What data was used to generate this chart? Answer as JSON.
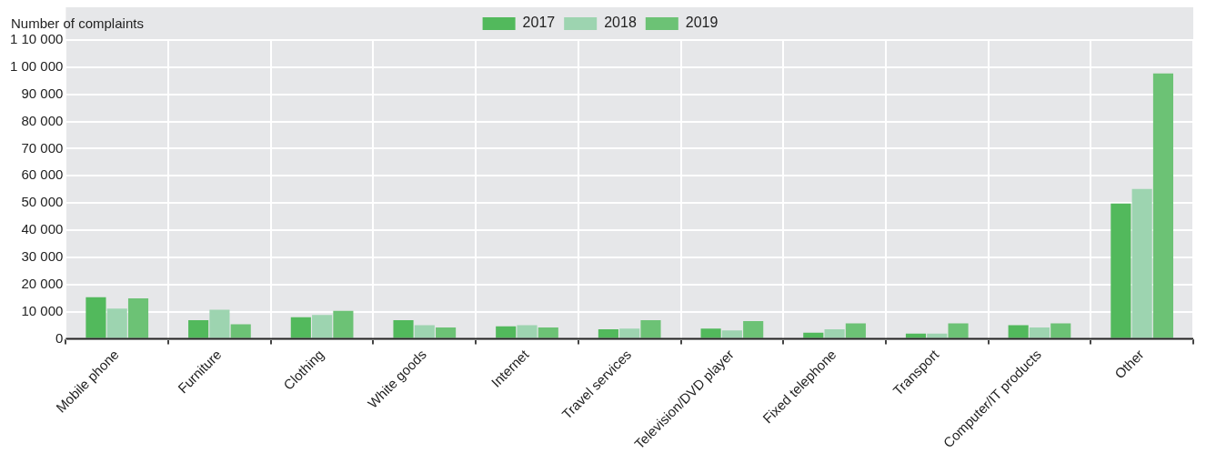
{
  "chart_data": {
    "type": "bar",
    "ylabel": "Number of complaints",
    "categories": [
      "Mobile phone",
      "Furniture",
      "Clothing",
      "White goods",
      "Internet",
      "Travel services",
      "Television/DVD player",
      "Fixed telephone",
      "Transport",
      "Computer/IT products",
      "Other"
    ],
    "series": [
      {
        "name": "2017",
        "color": "#52b95c",
        "values": [
          15300,
          6900,
          8000,
          6900,
          4600,
          3500,
          3800,
          2300,
          1900,
          5000,
          49800
        ]
      },
      {
        "name": "2018",
        "color": "#9dd4b0",
        "values": [
          11100,
          10700,
          8800,
          5000,
          5000,
          3800,
          3100,
          3500,
          1900,
          4200,
          55200
        ]
      },
      {
        "name": "2019",
        "color": "#6cc275",
        "values": [
          14900,
          5400,
          10300,
          4200,
          4200,
          6900,
          6500,
          5700,
          5700,
          5700,
          97700
        ]
      }
    ],
    "ylim": [
      0,
      110000
    ],
    "yticks": [
      0,
      {
        "value": 10000,
        "label": "10 000"
      },
      {
        "value": 20000,
        "label": "20 000"
      },
      {
        "value": 30000,
        "label": "30 000"
      },
      {
        "value": 40000,
        "label": "40 000"
      },
      {
        "value": 50000,
        "label": "50 000"
      },
      {
        "value": 60000,
        "label": "60 000"
      },
      {
        "value": 70000,
        "label": "70 000"
      },
      {
        "value": 80000,
        "label": "80 000"
      },
      {
        "value": 90000,
        "label": "90 000"
      },
      {
        "value": 100000,
        "label": "1 00 000"
      },
      {
        "value": 110000,
        "label": "1 10 000"
      }
    ],
    "grid": true,
    "legend": "top"
  }
}
